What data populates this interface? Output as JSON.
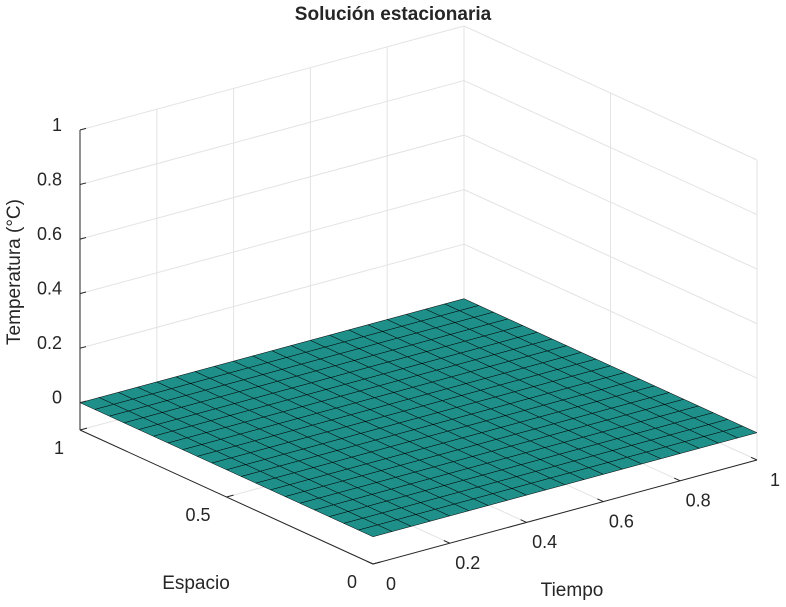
{
  "chart_data": {
    "type": "surface",
    "title": "Solución estacionaria",
    "xlabel": "Tiempo",
    "ylabel": "Espacio",
    "zlabel": "Temperatura (°C)",
    "x": [
      0,
      0.05,
      0.1,
      0.15,
      0.2,
      0.25,
      0.3,
      0.35,
      0.4,
      0.45,
      0.5,
      0.55,
      0.6,
      0.65,
      0.7,
      0.75,
      0.8,
      0.85,
      0.9,
      0.95,
      1
    ],
    "y": [
      0,
      0.05,
      0.1,
      0.15,
      0.2,
      0.25,
      0.3,
      0.35,
      0.4,
      0.45,
      0.5,
      0.55,
      0.6,
      0.65,
      0.7,
      0.75,
      0.8,
      0.85,
      0.9,
      0.95,
      1
    ],
    "z": [
      [
        0,
        0,
        0,
        0,
        0,
        0,
        0,
        0,
        0,
        0,
        0,
        0,
        0,
        0,
        0,
        0,
        0,
        0,
        0,
        0,
        0
      ],
      [
        0,
        0,
        0,
        0,
        0,
        0,
        0,
        0,
        0,
        0,
        0,
        0,
        0,
        0,
        0,
        0,
        0,
        0,
        0,
        0,
        0
      ],
      [
        0,
        0,
        0,
        0,
        0,
        0,
        0,
        0,
        0,
        0,
        0,
        0,
        0,
        0,
        0,
        0,
        0,
        0,
        0,
        0,
        0
      ],
      [
        0,
        0,
        0,
        0,
        0,
        0,
        0,
        0,
        0,
        0,
        0,
        0,
        0,
        0,
        0,
        0,
        0,
        0,
        0,
        0,
        0
      ],
      [
        0,
        0,
        0,
        0,
        0,
        0,
        0,
        0,
        0,
        0,
        0,
        0,
        0,
        0,
        0,
        0,
        0,
        0,
        0,
        0,
        0
      ],
      [
        0,
        0,
        0,
        0,
        0,
        0,
        0,
        0,
        0,
        0,
        0,
        0,
        0,
        0,
        0,
        0,
        0,
        0,
        0,
        0,
        0
      ],
      [
        0,
        0,
        0,
        0,
        0,
        0,
        0,
        0,
        0,
        0,
        0,
        0,
        0,
        0,
        0,
        0,
        0,
        0,
        0,
        0,
        0
      ],
      [
        0,
        0,
        0,
        0,
        0,
        0,
        0,
        0,
        0,
        0,
        0,
        0,
        0,
        0,
        0,
        0,
        0,
        0,
        0,
        0,
        0
      ],
      [
        0,
        0,
        0,
        0,
        0,
        0,
        0,
        0,
        0,
        0,
        0,
        0,
        0,
        0,
        0,
        0,
        0,
        0,
        0,
        0,
        0
      ],
      [
        0,
        0,
        0,
        0,
        0,
        0,
        0,
        0,
        0,
        0,
        0,
        0,
        0,
        0,
        0,
        0,
        0,
        0,
        0,
        0,
        0
      ],
      [
        0,
        0,
        0,
        0,
        0,
        0,
        0,
        0,
        0,
        0,
        0,
        0,
        0,
        0,
        0,
        0,
        0,
        0,
        0,
        0,
        0
      ],
      [
        0,
        0,
        0,
        0,
        0,
        0,
        0,
        0,
        0,
        0,
        0,
        0,
        0,
        0,
        0,
        0,
        0,
        0,
        0,
        0,
        0
      ],
      [
        0,
        0,
        0,
        0,
        0,
        0,
        0,
        0,
        0,
        0,
        0,
        0,
        0,
        0,
        0,
        0,
        0,
        0,
        0,
        0,
        0
      ],
      [
        0,
        0,
        0,
        0,
        0,
        0,
        0,
        0,
        0,
        0,
        0,
        0,
        0,
        0,
        0,
        0,
        0,
        0,
        0,
        0,
        0
      ],
      [
        0,
        0,
        0,
        0,
        0,
        0,
        0,
        0,
        0,
        0,
        0,
        0,
        0,
        0,
        0,
        0,
        0,
        0,
        0,
        0,
        0
      ],
      [
        0,
        0,
        0,
        0,
        0,
        0,
        0,
        0,
        0,
        0,
        0,
        0,
        0,
        0,
        0,
        0,
        0,
        0,
        0,
        0,
        0
      ],
      [
        0,
        0,
        0,
        0,
        0,
        0,
        0,
        0,
        0,
        0,
        0,
        0,
        0,
        0,
        0,
        0,
        0,
        0,
        0,
        0,
        0
      ],
      [
        0,
        0,
        0,
        0,
        0,
        0,
        0,
        0,
        0,
        0,
        0,
        0,
        0,
        0,
        0,
        0,
        0,
        0,
        0,
        0,
        0
      ],
      [
        0,
        0,
        0,
        0,
        0,
        0,
        0,
        0,
        0,
        0,
        0,
        0,
        0,
        0,
        0,
        0,
        0,
        0,
        0,
        0,
        0
      ],
      [
        0,
        0,
        0,
        0,
        0,
        0,
        0,
        0,
        0,
        0,
        0,
        0,
        0,
        0,
        0,
        0,
        0,
        0,
        0,
        0,
        0
      ],
      [
        0,
        0,
        0,
        0,
        0,
        0,
        0,
        0,
        0,
        0,
        0,
        0,
        0,
        0,
        0,
        0,
        0,
        0,
        0,
        0,
        0
      ]
    ],
    "color": "#1f8f8a",
    "edgecolor": "#000000",
    "xlim": [
      0,
      1
    ],
    "xticks": [
      0,
      0.2,
      0.4,
      0.6,
      0.8,
      1
    ],
    "ylim": [
      0,
      1
    ],
    "yticks": [
      0,
      0.5,
      1
    ],
    "zlim": [
      -0.1,
      1
    ],
    "zticks": [
      0,
      0.2,
      0.4,
      0.6,
      0.8,
      1
    ],
    "grid": true
  }
}
